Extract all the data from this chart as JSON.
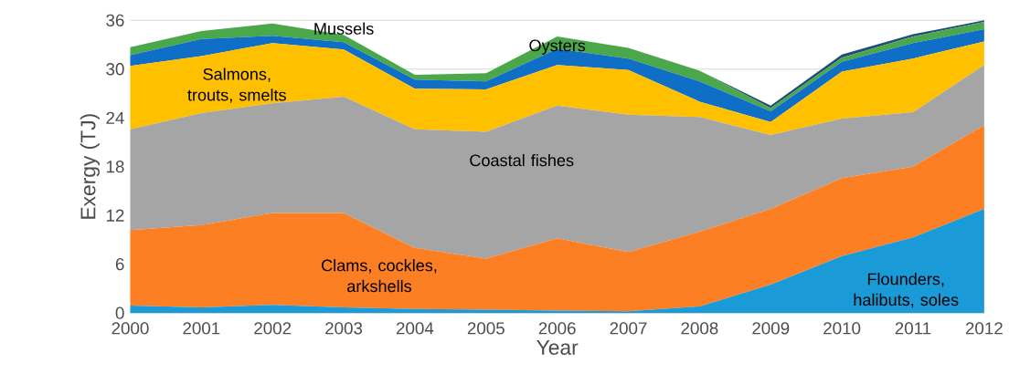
{
  "chart_data": {
    "type": "area",
    "stacked": true,
    "xlabel": "Year",
    "ylabel": "Exergy (TJ)",
    "x": [
      2000,
      2001,
      2002,
      2003,
      2004,
      2005,
      2006,
      2007,
      2008,
      2009,
      2010,
      2011,
      2012
    ],
    "xlim": [
      2000,
      2012
    ],
    "xticks": [
      2000,
      2001,
      2002,
      2003,
      2004,
      2005,
      2006,
      2007,
      2008,
      2009,
      2010,
      2011,
      2012
    ],
    "ylim": [
      0,
      36
    ],
    "yticks": [
      0,
      6,
      12,
      18,
      24,
      30,
      36
    ],
    "grid": "y",
    "series": [
      {
        "name": "Flounders, halibuts, soles",
        "color": "#1a9ad6",
        "values": [
          0.9,
          0.7,
          1.0,
          0.7,
          0.5,
          0.4,
          0.3,
          0.2,
          0.8,
          3.5,
          7.0,
          9.3,
          12.8
        ]
      },
      {
        "name": "Clams, cockles, arkshells",
        "color": "#fd7f23",
        "values": [
          9.3,
          10.1,
          11.3,
          11.6,
          7.5,
          6.3,
          8.9,
          7.3,
          9.2,
          9.3,
          9.6,
          8.7,
          10.3
        ]
      },
      {
        "name": "Coastal fishes",
        "color": "#a5a5a5",
        "values": [
          12.4,
          13.8,
          13.5,
          14.3,
          14.6,
          15.6,
          16.3,
          16.9,
          14.1,
          9.1,
          7.3,
          6.7,
          7.4
        ]
      },
      {
        "name": "Salmons, trouts, smelts",
        "color": "#ffc000",
        "values": [
          7.8,
          7.0,
          7.4,
          5.8,
          5.0,
          5.2,
          5.0,
          5.5,
          1.9,
          1.6,
          5.8,
          6.6,
          2.9
        ]
      },
      {
        "name": "Oysters",
        "color": "#0f6fc6",
        "values": [
          1.3,
          2.1,
          0.9,
          0.9,
          1.1,
          1.0,
          2.0,
          1.4,
          2.5,
          1.3,
          1.2,
          1.9,
          1.5
        ]
      },
      {
        "name": "Mussels",
        "color": "#4aa84a",
        "values": [
          1.0,
          1.0,
          1.5,
          0.9,
          0.6,
          1.0,
          1.5,
          1.3,
          1.3,
          0.4,
          0.5,
          0.8,
          0.9
        ]
      },
      {
        "color": "#1f4e79",
        "values": [
          0,
          0,
          0,
          0,
          0,
          0,
          0,
          0,
          0,
          0.3,
          0.4,
          0.3,
          0.2
        ]
      }
    ]
  }
}
